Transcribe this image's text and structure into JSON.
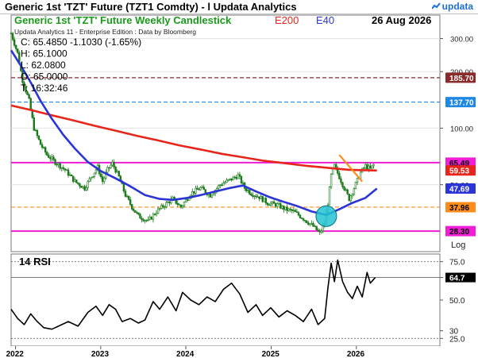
{
  "header": {
    "title": "Generic 1st 'TZT' Future (TZT1 Comdty) - l Updata Analytics",
    "brand": "updata",
    "brand_icon": "updata-logo-icon"
  },
  "panel": {
    "title": "Generic 1st 'TZT' Future Weekly Candlestick",
    "e200_label": "E200",
    "e40_label": "E40",
    "date": "26 Aug 2026",
    "edition": "Updata Analytics 11 - Enterprise Edition : Data by Bloomberg",
    "ohlc": [
      "C: 65.4850  -1.1030 (-1.65%)",
      "H: 65.1000",
      "L: 62.0800",
      "O: 65.0000",
      "T: 16:32:46"
    ],
    "scale_label": "Log",
    "rsi_label": "14 RSI"
  },
  "colors": {
    "candle": "#1a7a1a",
    "e200": "#e8251b",
    "e40": "#2b35d6",
    "magenta": "#f01ed6",
    "orange": "#ff8c1a",
    "maroon": "#8b2a2a",
    "blue_dash": "#1e88e5",
    "circle": "#22c4d4",
    "title_green": "#1a9a1a"
  },
  "chart_data": [
    {
      "type": "candlestick",
      "title": "Generic 1st 'TZT' Future Weekly Candlestick",
      "y_scale": "log",
      "ylim": [
        22,
        400
      ],
      "y_ticks": [
        300,
        200,
        100,
        50
      ],
      "y_tick_labels": [
        "300.00",
        "200.00",
        "100.00",
        "50.00"
      ],
      "x_labels": [
        "2022",
        "2023",
        "2024",
        "2025",
        "2026"
      ],
      "x_dates": [
        "2022-01-01",
        "2023-01-01",
        "2024-01-01",
        "2025-01-01",
        "2026-01-01"
      ],
      "x_range": [
        "2021-12-13",
        "2026-12-25"
      ],
      "price_path": [
        [
          "2021-12-13",
          320
        ],
        [
          "2022-01-10",
          250
        ],
        [
          "2022-01-31",
          180
        ],
        [
          "2022-02-28",
          140
        ],
        [
          "2022-03-21",
          100
        ],
        [
          "2022-04-18",
          82
        ],
        [
          "2022-05-16",
          72
        ],
        [
          "2022-06-20",
          66
        ],
        [
          "2022-08-01",
          60
        ],
        [
          "2022-09-12",
          52
        ],
        [
          "2022-10-24",
          48
        ],
        [
          "2022-11-21",
          55
        ],
        [
          "2022-12-19",
          62
        ],
        [
          "2023-01-09",
          52
        ],
        [
          "2023-01-30",
          60
        ],
        [
          "2023-02-20",
          65
        ],
        [
          "2023-03-20",
          55
        ],
        [
          "2023-04-17",
          44
        ],
        [
          "2023-05-15",
          38
        ],
        [
          "2023-06-12",
          34
        ],
        [
          "2023-07-24",
          32
        ],
        [
          "2023-08-28",
          36
        ],
        [
          "2023-10-02",
          39
        ],
        [
          "2023-11-06",
          42
        ],
        [
          "2023-12-11",
          38
        ],
        [
          "2024-01-22",
          45
        ],
        [
          "2024-03-04",
          48
        ],
        [
          "2024-04-15",
          44
        ],
        [
          "2024-05-27",
          50
        ],
        [
          "2024-07-08",
          53
        ],
        [
          "2024-08-12",
          56
        ],
        [
          "2024-09-09",
          48
        ],
        [
          "2024-10-07",
          45
        ],
        [
          "2024-11-11",
          43
        ],
        [
          "2024-12-16",
          40
        ],
        [
          "2025-01-27",
          39
        ],
        [
          "2025-03-03",
          37
        ],
        [
          "2025-04-07",
          36
        ],
        [
          "2025-05-19",
          33
        ],
        [
          "2025-06-30",
          30
        ],
        [
          "2025-07-28",
          27.5
        ],
        [
          "2025-08-18",
          31
        ],
        [
          "2025-09-01",
          40
        ],
        [
          "2025-09-15",
          56
        ],
        [
          "2025-09-29",
          63
        ],
        [
          "2025-10-20",
          55
        ],
        [
          "2025-11-10",
          48
        ],
        [
          "2025-12-01",
          42
        ],
        [
          "2025-12-22",
          48
        ],
        [
          "2026-01-19",
          58
        ],
        [
          "2026-02-09",
          63
        ],
        [
          "2026-03-02",
          60.5
        ],
        [
          "2026-03-23",
          65.49
        ]
      ],
      "series": [
        {
          "name": "E200",
          "points": [
            [
              "2021-12-13",
              132
            ],
            [
              "2022-03-07",
              125
            ],
            [
              "2022-06-06",
              117
            ],
            [
              "2022-09-05",
              110
            ],
            [
              "2022-12-05",
              103
            ],
            [
              "2023-03-06",
              97
            ],
            [
              "2023-06-05",
              91
            ],
            [
              "2023-09-04",
              86
            ],
            [
              "2023-12-04",
              81
            ],
            [
              "2024-03-04",
              77
            ],
            [
              "2024-06-03",
              73
            ],
            [
              "2024-09-02",
              70
            ],
            [
              "2024-12-02",
              67
            ],
            [
              "2025-03-03",
              65
            ],
            [
              "2025-06-02",
              63
            ],
            [
              "2025-09-01",
              61.5
            ],
            [
              "2025-12-01",
              60
            ],
            [
              "2026-03-30",
              59.5
            ]
          ]
        },
        {
          "name": "E40",
          "points": [
            [
              "2021-12-13",
              260
            ],
            [
              "2022-01-24",
              215
            ],
            [
              "2022-03-07",
              175
            ],
            [
              "2022-04-18",
              140
            ],
            [
              "2022-06-06",
              112
            ],
            [
              "2022-07-25",
              92
            ],
            [
              "2022-09-12",
              78
            ],
            [
              "2022-11-07",
              66
            ],
            [
              "2023-01-02",
              59
            ],
            [
              "2023-03-06",
              54
            ],
            [
              "2023-05-08",
              49
            ],
            [
              "2023-07-10",
              44
            ],
            [
              "2023-09-11",
              42
            ],
            [
              "2023-11-06",
              41.5
            ],
            [
              "2024-01-08",
              42.5
            ],
            [
              "2024-03-04",
              44
            ],
            [
              "2024-05-06",
              46
            ],
            [
              "2024-07-08",
              48
            ],
            [
              "2024-09-02",
              49.5
            ],
            [
              "2024-10-28",
              46
            ],
            [
              "2024-12-23",
              43
            ],
            [
              "2025-02-24",
              40.5
            ],
            [
              "2025-04-21",
              38.5
            ],
            [
              "2025-06-23",
              36
            ],
            [
              "2025-08-25",
              34.5
            ],
            [
              "2025-10-20",
              37
            ],
            [
              "2025-12-15",
              40
            ],
            [
              "2026-02-09",
              42.5
            ],
            [
              "2026-03-30",
              47.69
            ]
          ]
        }
      ],
      "levels": [
        {
          "label": "185.70",
          "value": 185.7,
          "style": "dashed",
          "color": "maroon"
        },
        {
          "label": "137.70",
          "value": 137.7,
          "style": "dashed",
          "color": "blue_dash"
        },
        {
          "label": "65.49",
          "value": 65.49,
          "style": "solid",
          "color": "magenta"
        },
        {
          "label": "59.53",
          "value": 59.53,
          "style": "none",
          "color": "e200"
        },
        {
          "label": "47.69",
          "value": 47.69,
          "style": "none",
          "color": "e40"
        },
        {
          "label": "37.96",
          "value": 37.96,
          "style": "dashed",
          "color": "orange"
        },
        {
          "label": "28.30",
          "value": 28.3,
          "style": "solid",
          "color": "magenta"
        }
      ],
      "trend_line": [
        [
          "2025-10-20",
          72
        ],
        [
          "2026-01-26",
          52
        ]
      ],
      "highlight_circle": {
        "date": "2025-08-25",
        "value": 34
      }
    },
    {
      "type": "line",
      "title": "14 RSI",
      "ylim": [
        20,
        80
      ],
      "y_ticks": [
        75,
        64.7,
        50,
        30,
        25
      ],
      "y_tick_labels": [
        "75.0",
        "64.7",
        "50.0",
        "30",
        "25.0"
      ],
      "reference_lines": [
        75,
        64.7,
        25
      ],
      "series": [
        {
          "name": "14 RSI",
          "points": [
            [
              "2021-12-13",
              44
            ],
            [
              "2022-01-10",
              38
            ],
            [
              "2022-02-07",
              34
            ],
            [
              "2022-03-07",
              41
            ],
            [
              "2022-04-04",
              36
            ],
            [
              "2022-05-02",
              32
            ],
            [
              "2022-06-06",
              31
            ],
            [
              "2022-07-04",
              33
            ],
            [
              "2022-08-15",
              36
            ],
            [
              "2022-09-26",
              33
            ],
            [
              "2022-11-07",
              42
            ],
            [
              "2022-12-12",
              46
            ],
            [
              "2023-01-09",
              40
            ],
            [
              "2023-02-06",
              47
            ],
            [
              "2023-03-06",
              44
            ],
            [
              "2023-04-03",
              36
            ],
            [
              "2023-05-08",
              38
            ],
            [
              "2023-06-12",
              35
            ],
            [
              "2023-07-10",
              37
            ],
            [
              "2023-08-14",
              49
            ],
            [
              "2023-09-11",
              44
            ],
            [
              "2023-10-16",
              52
            ],
            [
              "2023-11-20",
              43
            ],
            [
              "2023-12-18",
              55
            ],
            [
              "2024-01-22",
              50
            ],
            [
              "2024-02-26",
              47
            ],
            [
              "2024-04-01",
              52
            ],
            [
              "2024-05-06",
              49
            ],
            [
              "2024-06-10",
              57
            ],
            [
              "2024-07-15",
              61
            ],
            [
              "2024-08-19",
              54
            ],
            [
              "2024-09-23",
              42
            ],
            [
              "2024-10-28",
              47
            ],
            [
              "2024-11-25",
              40
            ],
            [
              "2024-12-30",
              45
            ],
            [
              "2025-02-03",
              39
            ],
            [
              "2025-03-10",
              43
            ],
            [
              "2025-04-14",
              40
            ],
            [
              "2025-05-19",
              36
            ],
            [
              "2025-06-23",
              44
            ],
            [
              "2025-07-21",
              34
            ],
            [
              "2025-08-18",
              38
            ],
            [
              "2025-09-01",
              58
            ],
            [
              "2025-09-15",
              74
            ],
            [
              "2025-09-29",
              62
            ],
            [
              "2025-10-13",
              76
            ],
            [
              "2025-11-03",
              62
            ],
            [
              "2025-11-24",
              55
            ],
            [
              "2025-12-15",
              51
            ],
            [
              "2026-01-05",
              59
            ],
            [
              "2026-01-26",
              52
            ],
            [
              "2026-02-16",
              68
            ],
            [
              "2026-03-02",
              61
            ],
            [
              "2026-03-23",
              64.7
            ]
          ]
        }
      ]
    }
  ]
}
